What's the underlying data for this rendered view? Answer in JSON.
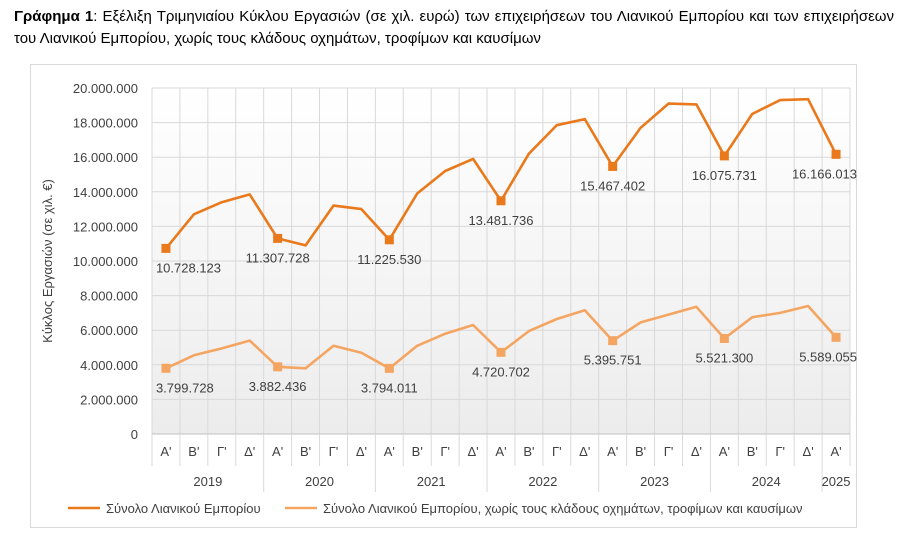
{
  "caption": {
    "bold": "Γράφημα 1",
    "text": ": Εξέλιξη Τριμηνιαίου Κύκλου Εργασιών (σε χιλ. ευρώ) των επιχειρήσεων του Λιανικού Εμπορίου και των επιχειρήσεων του Λιανικού Εμπορίου, χωρίς τους κλάδους οχημάτων, τροφίμων και καυσίμων"
  },
  "chart_data": {
    "type": "line",
    "title": "",
    "xlabel": "",
    "ylabel": "Κύκλος Εργασιών (σε χιλ. €)",
    "ylim": [
      0,
      20000000
    ],
    "yticks": [
      0,
      2000000,
      4000000,
      6000000,
      8000000,
      10000000,
      12000000,
      14000000,
      16000000,
      18000000,
      20000000
    ],
    "ytick_labels": [
      "0",
      "2.000.000",
      "4.000.000",
      "6.000.000",
      "8.000.000",
      "10.000.000",
      "12.000.000",
      "14.000.000",
      "16.000.000",
      "18.000.000",
      "20.000.000"
    ],
    "quarters": [
      "Α'",
      "Β'",
      "Γ'",
      "Δ'",
      "Α'",
      "Β'",
      "Γ'",
      "Δ'",
      "Α'",
      "Β'",
      "Γ'",
      "Δ'",
      "Α'",
      "Β'",
      "Γ'",
      "Δ'",
      "Α'",
      "Β'",
      "Γ'",
      "Δ'",
      "Α'",
      "Β'",
      "Γ'",
      "Δ'",
      "Α'"
    ],
    "years": [
      {
        "label": "2019",
        "count": 4
      },
      {
        "label": "2020",
        "count": 4
      },
      {
        "label": "2021",
        "count": 4
      },
      {
        "label": "2022",
        "count": 4
      },
      {
        "label": "2023",
        "count": 4
      },
      {
        "label": "2024",
        "count": 4
      },
      {
        "label": "2025",
        "count": 1
      }
    ],
    "grid": true,
    "legend_position": "bottom",
    "series": [
      {
        "name": "Σύνολο Λιανικού Εμπορίου",
        "color": "#E9791B",
        "values": [
          10728123,
          12700000,
          13400000,
          13850000,
          11307728,
          10900000,
          13200000,
          13000000,
          11225530,
          13900000,
          15200000,
          15900000,
          13481736,
          16200000,
          17850000,
          18200000,
          15467402,
          17700000,
          19100000,
          19050000,
          16075731,
          18500000,
          19300000,
          19350000,
          16166013
        ],
        "labels": {
          "0": "10.728.123",
          "4": "11.307.728",
          "8": "11.225.530",
          "12": "13.481.736",
          "16": "15.467.402",
          "20": "16.075.731",
          "24": "16.166.013"
        }
      },
      {
        "name": "Σύνολο Λιανικού Εμπορίου, χωρίς τους κλάδους οχημάτων, τροφίμων και καυσίμων",
        "color": "#F4A562",
        "values": [
          3799728,
          4550000,
          4950000,
          5400000,
          3882436,
          3800000,
          5100000,
          4700000,
          3794011,
          5100000,
          5800000,
          6300000,
          4720702,
          5950000,
          6650000,
          7150000,
          5395751,
          6450000,
          6900000,
          7350000,
          5521300,
          6750000,
          7000000,
          7400000,
          5589055
        ],
        "labels": {
          "0": "3.799.728",
          "4": "3.882.436",
          "8": "3.794.011",
          "12": "4.720.702",
          "16": "5.395.751",
          "20": "5.521.300",
          "24": "5.589.055"
        }
      }
    ]
  }
}
